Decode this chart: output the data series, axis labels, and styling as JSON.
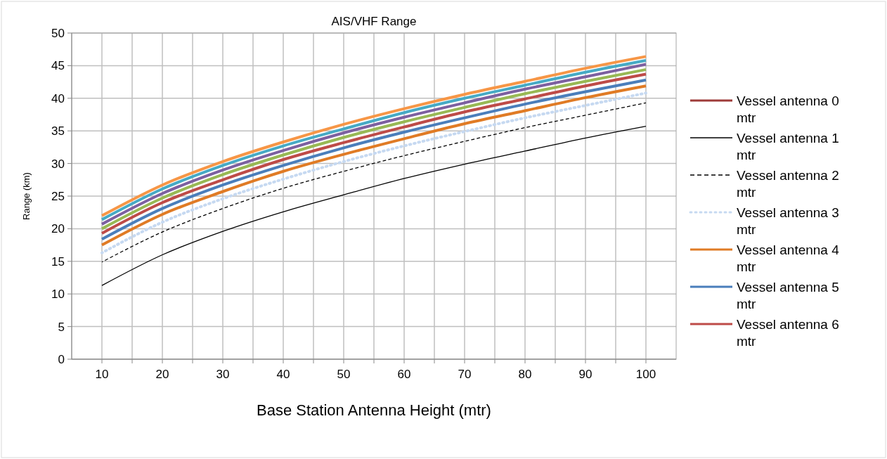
{
  "chart_data": {
    "type": "line",
    "title": "AIS/VHF Range",
    "xlabel": "Base Station Antenna Height (mtr)",
    "ylabel": "Range (km)",
    "x": [
      10,
      20,
      30,
      40,
      50,
      60,
      70,
      80,
      90,
      100
    ],
    "xlim": [
      5,
      105
    ],
    "xticks": [
      10,
      {
        "value": 15,
        "label": null
      },
      20,
      {
        "value": 25,
        "label": null
      },
      30,
      {
        "value": 35,
        "label": null
      },
      40,
      {
        "value": 45,
        "label": null
      },
      50,
      {
        "value": 55,
        "label": null
      },
      60,
      {
        "value": 65,
        "label": null
      },
      70,
      {
        "value": 75,
        "label": null
      },
      80,
      {
        "value": 85,
        "label": null
      },
      90,
      {
        "value": 95,
        "label": null
      },
      100
    ],
    "ylim": [
      0,
      50
    ],
    "yticks": [
      0,
      5,
      10,
      15,
      20,
      25,
      30,
      35,
      40,
      45,
      50
    ],
    "grid": true,
    "legend": "right",
    "marker": "none",
    "series": [
      {
        "name": "Vessel antenna 0 mtr",
        "color": "#9e3b39",
        "line_style": "solid",
        "values": [
          null,
          null,
          null,
          null,
          null,
          null,
          null,
          null,
          null,
          null
        ]
      },
      {
        "name": "Vessel antenna 1 mtr",
        "color": "#000000",
        "line_style": "solid",
        "values": [
          11.3,
          16.0,
          19.6,
          22.6,
          25.2,
          27.7,
          29.9,
          31.9,
          33.9,
          35.7
        ]
      },
      {
        "name": "Vessel antenna 2 mtr",
        "color": "#000000",
        "line_style": "dashed",
        "values": [
          14.9,
          19.5,
          23.1,
          26.2,
          28.8,
          31.2,
          33.4,
          35.5,
          37.4,
          39.3
        ]
      },
      {
        "name": "Vessel antenna 3 mtr",
        "color": "#c6d9f1",
        "line_style": "dotted",
        "values": [
          16.3,
          21.0,
          24.6,
          27.6,
          30.3,
          32.7,
          34.9,
          37.0,
          38.9,
          40.8
        ]
      },
      {
        "name": "Vessel antenna 4 mtr",
        "color": "#e07b25",
        "line_style": "solid",
        "values": [
          17.5,
          22.2,
          25.7,
          28.8,
          31.4,
          33.8,
          36.1,
          38.1,
          40.1,
          41.9
        ]
      },
      {
        "name": "Vessel antenna 5 mtr",
        "color": "#4a7ebb",
        "line_style": "solid",
        "values": [
          18.4,
          23.1,
          26.7,
          29.7,
          32.4,
          34.8,
          37.0,
          39.1,
          41.0,
          42.8
        ]
      },
      {
        "name": "Vessel antenna 6 mtr",
        "color": "#be4b48",
        "line_style": "solid",
        "values": [
          19.3,
          24.0,
          27.5,
          30.6,
          33.2,
          35.6,
          37.9,
          39.9,
          41.9,
          43.7
        ]
      },
      {
        "color": "#98b954",
        "line_style": "solid",
        "values": [
          20.0,
          24.7,
          28.3,
          31.3,
          34.0,
          36.4,
          38.6,
          40.7,
          42.6,
          44.4
        ]
      },
      {
        "color": "#7d60a0",
        "line_style": "solid",
        "values": [
          20.7,
          25.4,
          29.0,
          32.0,
          34.7,
          37.1,
          39.3,
          41.4,
          43.3,
          45.2
        ]
      },
      {
        "color": "#46aac5",
        "line_style": "solid",
        "values": [
          21.4,
          26.1,
          29.7,
          32.7,
          35.3,
          37.8,
          40.0,
          42.0,
          44.0,
          45.8
        ]
      },
      {
        "color": "#f79646",
        "line_style": "solid",
        "values": [
          22.0,
          26.7,
          30.3,
          33.3,
          36.0,
          38.4,
          40.6,
          42.6,
          44.6,
          46.4
        ]
      }
    ]
  }
}
